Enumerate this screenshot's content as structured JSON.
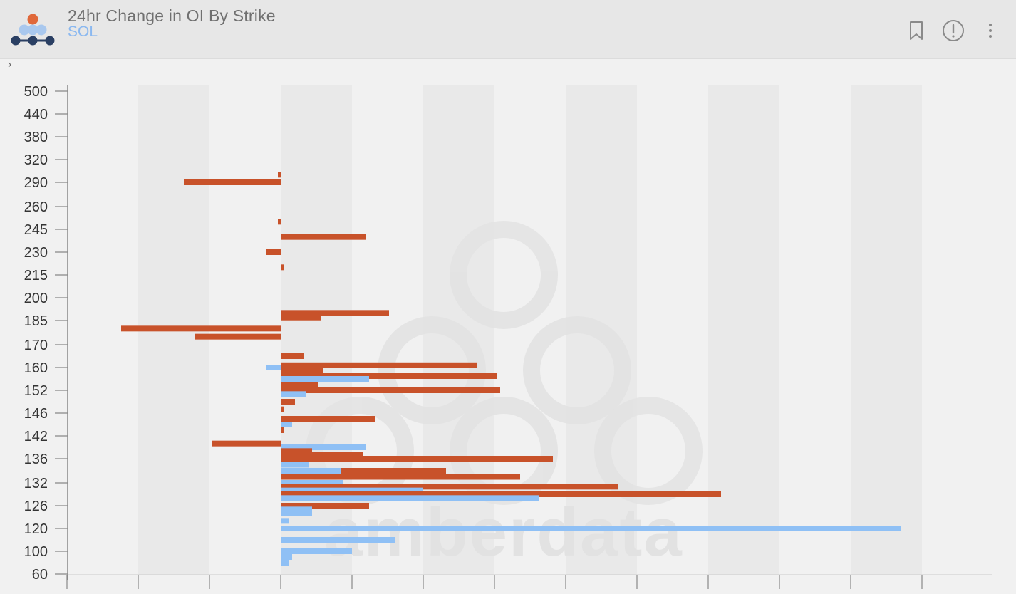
{
  "header": {
    "title": "24hr Change in OI By Strike",
    "subtitle": "SOL",
    "icons": [
      "bookmark-icon",
      "info-icon",
      "more-icon"
    ]
  },
  "watermark": "amberdata",
  "colors": {
    "calls": "#c8522a",
    "puts": "#8fc0f5",
    "axis": "#888888",
    "stripe": "#e9e9e9"
  },
  "chart_data": {
    "type": "bar",
    "orientation": "horizontal",
    "title": "24hr Change in OI By Strike",
    "xlabel": "",
    "ylabel": "",
    "categories": [
      "500",
      "440",
      "380",
      "320",
      "290",
      "260",
      "245",
      "230",
      "215",
      "200",
      "185",
      "170",
      "160",
      "152",
      "146",
      "142",
      "136",
      "132",
      "126",
      "120",
      "100",
      "60"
    ],
    "xlim": [
      -3,
      10
    ],
    "grid": true,
    "bars": [
      {
        "y": 300,
        "series": "orange",
        "value": -0.04
      },
      {
        "y": 290,
        "series": "orange",
        "value": -1.36
      },
      {
        "y": 250,
        "series": "orange",
        "value": -0.04
      },
      {
        "y": 240,
        "series": "orange",
        "value": 1.2
      },
      {
        "y": 230,
        "series": "orange",
        "value": -0.2
      },
      {
        "y": 220,
        "series": "orange",
        "value": 0.04
      },
      {
        "y": 190,
        "series": "orange",
        "value": 1.52
      },
      {
        "y": 187,
        "series": "orange",
        "value": 0.56
      },
      {
        "y": 180,
        "series": "orange",
        "value": -2.24
      },
      {
        "y": 175,
        "series": "orange",
        "value": -1.2
      },
      {
        "y": 165,
        "series": "orange",
        "value": 0.32
      },
      {
        "y": 161,
        "series": "orange",
        "value": 2.76
      },
      {
        "y": 160,
        "series": "blue",
        "value": -0.2
      },
      {
        "y": 159,
        "series": "orange",
        "value": 0.6
      },
      {
        "y": 157,
        "series": "orange",
        "value": 3.04
      },
      {
        "y": 156,
        "series": "blue",
        "value": 1.24
      },
      {
        "y": 154,
        "series": "orange",
        "value": 0.52
      },
      {
        "y": 152,
        "series": "orange",
        "value": 3.08
      },
      {
        "y": 151,
        "series": "blue",
        "value": 0.36
      },
      {
        "y": 149,
        "series": "orange",
        "value": 0.2
      },
      {
        "y": 147,
        "series": "orange",
        "value": 0.04
      },
      {
        "y": 145,
        "series": "orange",
        "value": 1.32
      },
      {
        "y": 144,
        "series": "blue",
        "value": 0.16
      },
      {
        "y": 143,
        "series": "orange",
        "value": 0.04
      },
      {
        "y": 140,
        "series": "orange",
        "value": -0.96
      },
      {
        "y": 139,
        "series": "blue",
        "value": 1.2
      },
      {
        "y": 138,
        "series": "orange",
        "value": 0.44
      },
      {
        "y": 137,
        "series": "orange",
        "value": 1.16
      },
      {
        "y": 136,
        "series": "orange",
        "value": 3.82
      },
      {
        "y": 135,
        "series": "blue",
        "value": 0.4
      },
      {
        "y": 134,
        "series": "orange",
        "value": 2.32
      },
      {
        "y": 134,
        "series": "blue",
        "value": 0.84
      },
      {
        "y": 133,
        "series": "orange",
        "value": 3.36
      },
      {
        "y": 132,
        "series": "blue",
        "value": 0.88
      },
      {
        "y": 131,
        "series": "orange",
        "value": 4.74
      },
      {
        "y": 130,
        "series": "blue",
        "value": 2.0
      },
      {
        "y": 129,
        "series": "orange",
        "value": 6.18
      },
      {
        "y": 128,
        "series": "blue",
        "value": 3.62
      },
      {
        "y": 126,
        "series": "orange",
        "value": 1.24
      },
      {
        "y": 125,
        "series": "blue",
        "value": 0.44
      },
      {
        "y": 124,
        "series": "blue",
        "value": 0.44
      },
      {
        "y": 122,
        "series": "blue",
        "value": 0.12
      },
      {
        "y": 120,
        "series": "blue",
        "value": 8.7
      },
      {
        "y": 110,
        "series": "blue",
        "value": 1.6
      },
      {
        "y": 100,
        "series": "blue",
        "value": 1.0
      },
      {
        "y": 90,
        "series": "blue",
        "value": 0.16
      },
      {
        "y": 80,
        "series": "blue",
        "value": 0.12
      }
    ]
  }
}
